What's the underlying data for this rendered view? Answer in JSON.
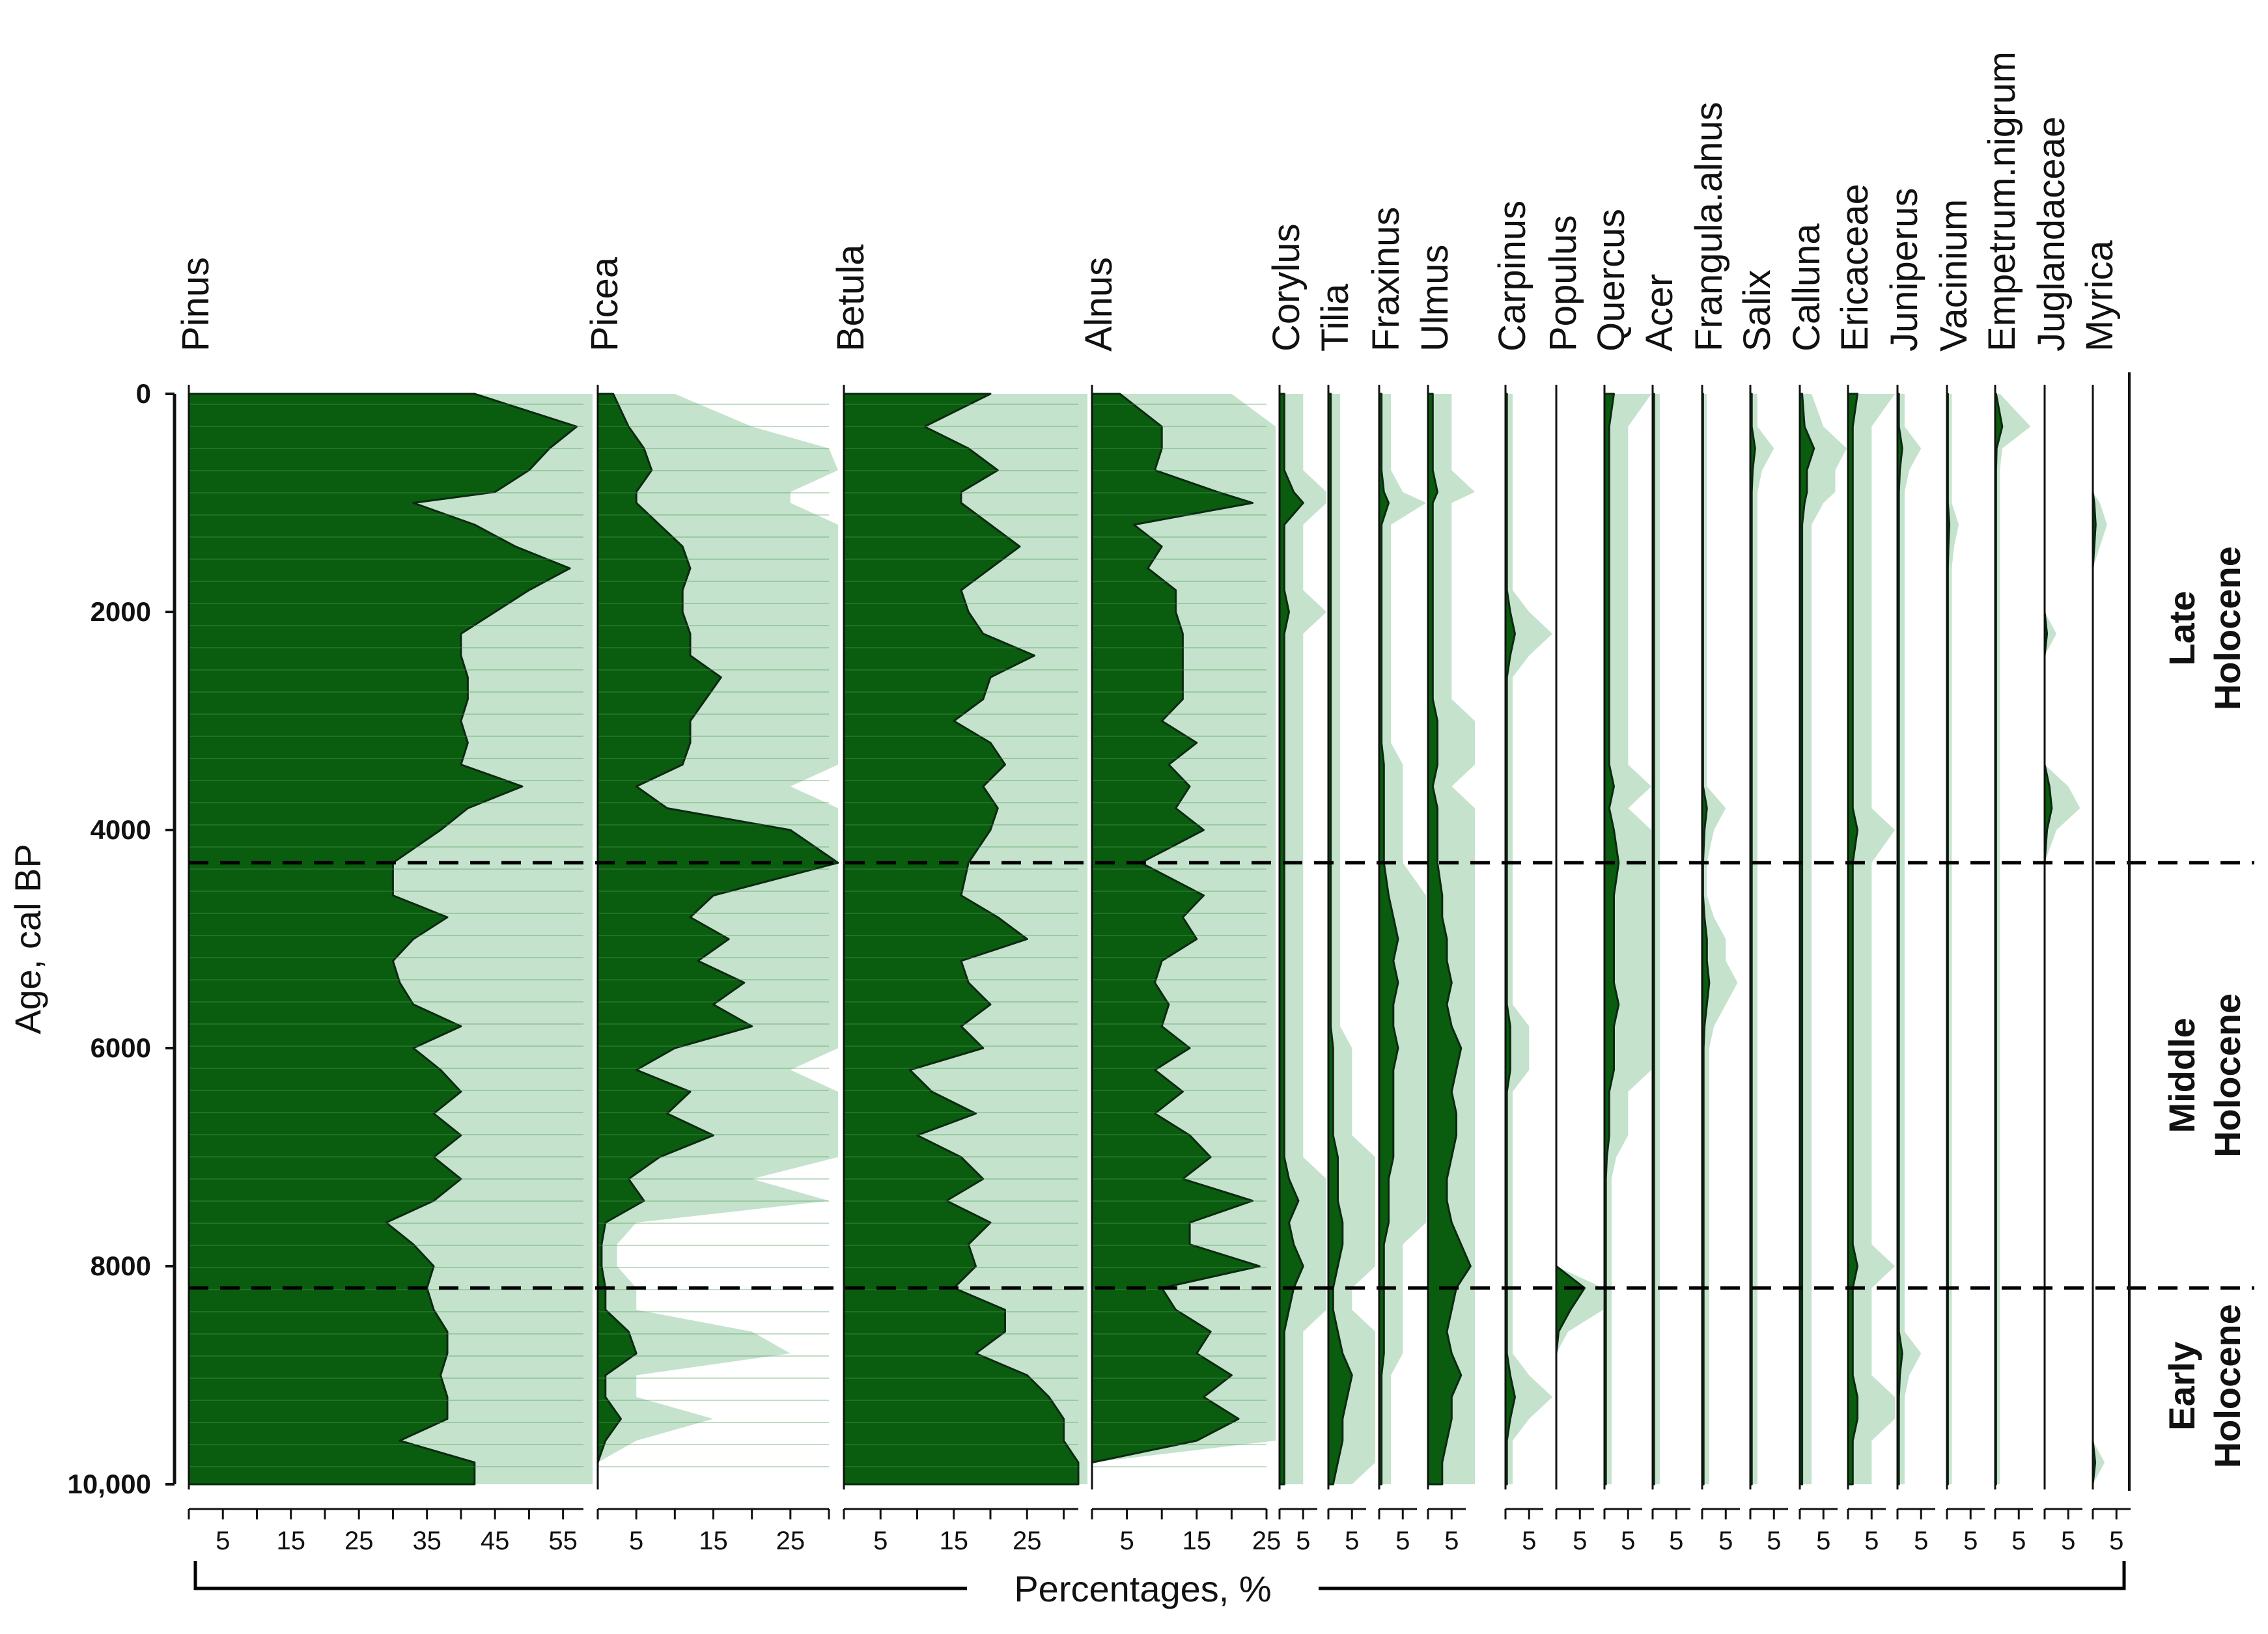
{
  "chart_data": {
    "type": "area",
    "subtype": "stratigraphic pollen diagram",
    "y_axis": {
      "label": "Age, cal BP",
      "ticks": [
        0,
        2000,
        4000,
        6000,
        8000,
        10000
      ],
      "tick_labels": [
        "0",
        "2000",
        "4000",
        "6000",
        "8000",
        "10,000"
      ],
      "range": [
        0,
        10000
      ],
      "direction": "top-to-bottom"
    },
    "x_axis_title": "Percentages, %",
    "ages": [
      0,
      300,
      500,
      700,
      900,
      1000,
      1200,
      1400,
      1600,
      1800,
      2000,
      2200,
      2400,
      2600,
      2800,
      3000,
      3200,
      3400,
      3600,
      3800,
      4000,
      4300,
      4600,
      4800,
      5000,
      5200,
      5400,
      5600,
      5800,
      6000,
      6200,
      6400,
      6600,
      6800,
      7000,
      7200,
      7400,
      7600,
      7800,
      8000,
      8200,
      8400,
      8600,
      8800,
      9000,
      9200,
      9400,
      9600,
      9800,
      10000
    ],
    "zones": [
      {
        "name": "Late Holocene",
        "lines": [
          "Late",
          "Holocene"
        ],
        "from": 0,
        "to": 4300
      },
      {
        "name": "Middle Holocene",
        "lines": [
          "Middle",
          "Holocene"
        ],
        "from": 4300,
        "to": 8200
      },
      {
        "name": "Early Holocene",
        "lines": [
          "Early",
          "Holocene"
        ],
        "from": 8200,
        "to": 10000
      }
    ],
    "zone_boundaries": [
      4300,
      8200
    ],
    "exaggeration_note": "light green shading shows 5x exaggeration",
    "colors": {
      "fill": "#0a5c0f",
      "exaggeration": "#c4e2cc",
      "outline": "#0b2a10",
      "axis": "#111111"
    },
    "taxa": [
      {
        "name": "Pinus",
        "max": 58,
        "ticks": [
          5,
          15,
          25,
          35,
          45,
          55
        ],
        "values": [
          42,
          57,
          53,
          50,
          45,
          33,
          42,
          48,
          56,
          50,
          45,
          40,
          40,
          41,
          41,
          40,
          41,
          40,
          49,
          41,
          37,
          30,
          30,
          38,
          33,
          30,
          31,
          33,
          40,
          33,
          37,
          40,
          36,
          40,
          36,
          40,
          36,
          29,
          33,
          36,
          35,
          36,
          38,
          38,
          37,
          38,
          38,
          31,
          42,
          42
        ]
      },
      {
        "name": "Picea",
        "max": 30,
        "ticks": [
          5,
          15,
          25
        ],
        "values": [
          2,
          4,
          6,
          7,
          5,
          5,
          8,
          11,
          12,
          11,
          11,
          12,
          12,
          16,
          14,
          12,
          12,
          11,
          5,
          9,
          25,
          33,
          15,
          12,
          17,
          13,
          19,
          15,
          20,
          10,
          5,
          12,
          9,
          15,
          8,
          4,
          6,
          1,
          0.5,
          0.5,
          1,
          1,
          4,
          5,
          1,
          1,
          3,
          1,
          0,
          0
        ]
      },
      {
        "name": "Betula",
        "max": 32,
        "ticks": [
          5,
          15,
          25
        ],
        "values": [
          20,
          11,
          17,
          21,
          16,
          16,
          20,
          24,
          20,
          16,
          17,
          19,
          26,
          20,
          19,
          15,
          20,
          22,
          19,
          21,
          20,
          17,
          16,
          21,
          25,
          16,
          17,
          20,
          16,
          19,
          9,
          12,
          18,
          10,
          16,
          19,
          14,
          20,
          17,
          18,
          15,
          22,
          22,
          18,
          25,
          28,
          30,
          30,
          32,
          32
        ]
      },
      {
        "name": "Alnus",
        "max": 25,
        "ticks": [
          5,
          15,
          25
        ],
        "values": [
          4,
          10,
          10,
          9,
          18,
          23,
          6,
          10,
          8,
          12,
          12,
          13,
          13,
          13,
          13,
          10,
          15,
          11,
          14,
          12,
          16,
          7,
          16,
          13,
          15,
          10,
          9,
          11,
          10,
          14,
          9,
          13,
          9,
          14,
          17,
          13,
          23,
          14,
          14,
          24,
          10,
          12,
          17,
          15,
          20,
          16,
          21,
          15,
          0,
          0
        ]
      },
      {
        "name": "Corylus",
        "max": 8,
        "ticks": [
          5
        ],
        "values": [
          1,
          1,
          1,
          1,
          3,
          5,
          1,
          1,
          1,
          1,
          2,
          1,
          1,
          1,
          1,
          1,
          1,
          1,
          1,
          1,
          1,
          1,
          1,
          1,
          1,
          1,
          1,
          1,
          1,
          1,
          1,
          1,
          1,
          1,
          1,
          2,
          4,
          2,
          3,
          5,
          3,
          2,
          1,
          1,
          1,
          1,
          1,
          1,
          1,
          1
        ]
      },
      {
        "name": "Tilia",
        "max": 8,
        "ticks": [
          5
        ],
        "values": [
          0.5,
          0.5,
          0.5,
          0.5,
          0.5,
          0.5,
          0.5,
          0.5,
          0.5,
          0.5,
          0.5,
          0.5,
          0.5,
          0.5,
          0.5,
          0.5,
          0.5,
          0.5,
          0.5,
          0.5,
          0.5,
          0.5,
          0.5,
          0.5,
          0.5,
          0.5,
          0.5,
          0.5,
          0.5,
          1,
          1,
          1,
          1,
          1,
          2,
          2,
          2,
          3,
          3,
          2,
          1,
          1,
          2,
          3,
          5,
          4,
          3,
          3,
          2,
          1
        ]
      },
      {
        "name": "Fraxinus",
        "max": 8,
        "ticks": [
          5
        ],
        "values": [
          0.5,
          0.5,
          0.5,
          0.5,
          1,
          2,
          0.5,
          0.5,
          0.5,
          0.5,
          0.5,
          0.5,
          0.5,
          0.5,
          0.5,
          0.5,
          0.5,
          1,
          1,
          1,
          1,
          1,
          2,
          3,
          4,
          3,
          4,
          3,
          3,
          4,
          3,
          3,
          3,
          3,
          3,
          2,
          2,
          2,
          1,
          1,
          1,
          1,
          1,
          1,
          0.5,
          0.5,
          0.5,
          0.5,
          0.5,
          0.5
        ]
      },
      {
        "name": "Ulmus",
        "max": 8,
        "ticks": [
          5
        ],
        "values": [
          1,
          1,
          1,
          1,
          2,
          1,
          1,
          1,
          1,
          1,
          1,
          1,
          1,
          1,
          1,
          2,
          2,
          2,
          1,
          2,
          2,
          2,
          3,
          3,
          4,
          4,
          5,
          4,
          5,
          7,
          6,
          5,
          6,
          6,
          5,
          4,
          4,
          5,
          7,
          9,
          6,
          5,
          4,
          5,
          7,
          5,
          5,
          4,
          3,
          3
        ]
      },
      {
        "name": "Carpinus",
        "max": 8,
        "ticks": [
          5
        ],
        "values": [
          0.3,
          0.3,
          0.3,
          0.3,
          0.3,
          0.3,
          0.3,
          0.3,
          0.3,
          0.3,
          1,
          2,
          1,
          0.3,
          0.3,
          0.3,
          0.3,
          0.3,
          0.3,
          0.3,
          0.3,
          0.3,
          0.3,
          0.3,
          0.3,
          0.3,
          0.3,
          0.3,
          1,
          1,
          1,
          0.3,
          0.3,
          0.3,
          0.3,
          0.3,
          0.3,
          0.3,
          0.3,
          0.3,
          0.3,
          0.3,
          0.3,
          0.3,
          1,
          2,
          1,
          0.3,
          0.3,
          0.3
        ]
      },
      {
        "name": "Populus",
        "max": 8,
        "ticks": [
          5
        ],
        "values": [
          0,
          0,
          0,
          0,
          0,
          0,
          0,
          0,
          0,
          0,
          0,
          0,
          0,
          0,
          0,
          0,
          0,
          0,
          0,
          0,
          0,
          0,
          0,
          0,
          0,
          0,
          0,
          0,
          0,
          0,
          0,
          0,
          0,
          0,
          0,
          0,
          0,
          0,
          0,
          0,
          6,
          3,
          0.5,
          0,
          0,
          0,
          0,
          0,
          0,
          0
        ]
      },
      {
        "name": "Quercus",
        "max": 8,
        "ticks": [
          5
        ],
        "values": [
          2,
          1,
          1,
          1,
          1,
          1,
          1,
          1,
          1,
          1,
          1,
          1,
          1,
          1,
          1,
          1,
          1,
          1,
          2,
          1,
          2,
          3,
          2,
          2,
          2,
          2,
          2,
          3,
          2,
          2,
          2,
          1,
          1,
          1,
          0.5,
          0.3,
          0.3,
          0.3,
          0.3,
          0.3,
          0.3,
          0.3,
          0.3,
          0.3,
          0.3,
          0.3,
          0.3,
          0.3,
          0.3,
          0.3
        ]
      },
      {
        "name": "Acer",
        "max": 8,
        "ticks": [
          5
        ],
        "values": [
          0.3,
          0.3,
          0.3,
          0.3,
          0.3,
          0.3,
          0.3,
          0.3,
          0.3,
          0.3,
          0.3,
          0.3,
          0.3,
          0.3,
          0.3,
          0.3,
          0.3,
          0.3,
          0.3,
          0.3,
          0.3,
          0.3,
          0.3,
          0.3,
          0.3,
          0.3,
          0.3,
          0.3,
          0.3,
          0.3,
          0.3,
          0.3,
          0.3,
          0.3,
          0.3,
          0.3,
          0.3,
          0.3,
          0.3,
          0.3,
          0.3,
          0.3,
          0.3,
          0.3,
          0.3,
          0.3,
          0.3,
          0.3,
          0.3,
          0.3
        ]
      },
      {
        "name": "Frangula.alnus",
        "max": 8,
        "ticks": [
          5
        ],
        "values": [
          0.2,
          0.2,
          0.2,
          0.2,
          0.2,
          0.2,
          0.2,
          0.2,
          0.2,
          0.2,
          0.2,
          0.2,
          0.2,
          0.2,
          0.2,
          0.2,
          0.2,
          0.2,
          0.2,
          1,
          0.5,
          0.2,
          0.2,
          0.5,
          1,
          1,
          1.5,
          1,
          0.5,
          0.3,
          0.3,
          0.3,
          0.3,
          0.3,
          0.3,
          0.3,
          0.3,
          0.3,
          0.3,
          0.3,
          0.3,
          0.3,
          0.3,
          0.3,
          0.3,
          0.3,
          0.3,
          0.3,
          0.3,
          0.3
        ]
      },
      {
        "name": "Salix",
        "max": 8,
        "ticks": [
          5
        ],
        "values": [
          0.3,
          0.3,
          1,
          0.5,
          0.3,
          0.3,
          0.3,
          0.3,
          0.3,
          0.3,
          0.3,
          0.3,
          0.3,
          0.3,
          0.3,
          0.3,
          0.3,
          0.3,
          0.3,
          0.3,
          0.3,
          0.3,
          0.3,
          0.3,
          0.3,
          0.3,
          0.3,
          0.3,
          0.3,
          0.3,
          0.3,
          0.3,
          0.3,
          0.3,
          0.3,
          0.3,
          0.3,
          0.3,
          0.3,
          0.3,
          0.3,
          0.3,
          0.3,
          0.3,
          0.3,
          0.3,
          0.3,
          0.3,
          0.3,
          0.3
        ]
      },
      {
        "name": "Calluna",
        "max": 8,
        "ticks": [
          5
        ],
        "values": [
          0.5,
          1,
          3,
          1.5,
          1.5,
          1,
          0.5,
          0.5,
          0.5,
          0.5,
          0.5,
          0.5,
          0.5,
          0.5,
          0.5,
          0.5,
          0.5,
          0.5,
          0.5,
          0.5,
          0.5,
          0.5,
          0.5,
          0.5,
          0.5,
          0.5,
          0.5,
          0.5,
          0.5,
          0.5,
          0.5,
          0.5,
          0.5,
          0.5,
          0.5,
          0.5,
          0.5,
          0.5,
          0.5,
          0.5,
          0.5,
          0.5,
          0.5,
          0.5,
          0.5,
          0.5,
          0.5,
          0.5,
          0.5,
          0.5
        ]
      },
      {
        "name": "Ericaceae",
        "max": 8,
        "ticks": [
          5
        ],
        "values": [
          2,
          1,
          1,
          1,
          1,
          1,
          1,
          1,
          1,
          1,
          1,
          1,
          1,
          1,
          1,
          1,
          1,
          1,
          1,
          1,
          2,
          1,
          1,
          1,
          1,
          1,
          1,
          1,
          1,
          1,
          1,
          1,
          1,
          1,
          1,
          1,
          1,
          1,
          1,
          2,
          1,
          1,
          1,
          1,
          1,
          2,
          2,
          1,
          1,
          1
        ]
      },
      {
        "name": "Juniperus",
        "max": 8,
        "ticks": [
          5
        ],
        "values": [
          0.3,
          0.3,
          1,
          0.5,
          0.3,
          0.3,
          0.3,
          0.3,
          0.3,
          0.3,
          0.3,
          0.3,
          0.3,
          0.3,
          0.3,
          0.3,
          0.3,
          0.3,
          0.3,
          0.3,
          0.3,
          0.3,
          0.3,
          0.3,
          0.3,
          0.3,
          0.3,
          0.3,
          0.3,
          0.3,
          0.3,
          0.3,
          0.3,
          0.3,
          0.3,
          0.3,
          0.3,
          0.3,
          0.3,
          0.3,
          0.3,
          0.3,
          0.3,
          1,
          0.5,
          0.3,
          0.3,
          0.3,
          0.3,
          0.3
        ]
      },
      {
        "name": "Vacinium",
        "max": 8,
        "ticks": [
          5
        ],
        "values": [
          0.2,
          0.2,
          0.2,
          0.2,
          0.2,
          0.2,
          0.5,
          0.3,
          0.2,
          0.2,
          0.2,
          0.2,
          0.2,
          0.2,
          0.2,
          0.2,
          0.2,
          0.2,
          0.2,
          0.2,
          0.2,
          0.2,
          0.2,
          0.2,
          0.2,
          0.2,
          0.2,
          0.2,
          0.2,
          0.2,
          0.2,
          0.2,
          0.2,
          0.2,
          0.2,
          0.2,
          0.2,
          0.2,
          0.2,
          0.2,
          0.2,
          0.2,
          0.2,
          0.2,
          0.2,
          0.2,
          0.2,
          0.2,
          0.2,
          0.2
        ]
      },
      {
        "name": "Empetrum.nigrum",
        "max": 8,
        "ticks": [
          5
        ],
        "values": [
          0.2,
          1.5,
          0.3,
          0.2,
          0.2,
          0.2,
          0.2,
          0.2,
          0.2,
          0.2,
          0.2,
          0.2,
          0.2,
          0.2,
          0.2,
          0.2,
          0.2,
          0.2,
          0.2,
          0.2,
          0.2,
          0.2,
          0.2,
          0.2,
          0.2,
          0.2,
          0.2,
          0.2,
          0.2,
          0.2,
          0.2,
          0.2,
          0.2,
          0.2,
          0.2,
          0.2,
          0.2,
          0.2,
          0.2,
          0.2,
          0.2,
          0.2,
          0.2,
          0.2,
          0.2,
          0.2,
          0.2,
          0.2,
          0.2,
          0.2
        ]
      },
      {
        "name": "Juglandaceae",
        "max": 8,
        "ticks": [
          5
        ],
        "values": [
          0,
          0,
          0,
          0,
          0,
          0,
          0,
          0,
          0,
          0,
          0,
          0.5,
          0,
          0,
          0,
          0,
          0,
          0,
          1,
          1.5,
          0.5,
          0,
          0,
          0,
          0,
          0,
          0,
          0,
          0,
          0,
          0,
          0,
          0,
          0,
          0,
          0,
          0,
          0,
          0,
          0,
          0,
          0,
          0,
          0,
          0,
          0,
          0,
          0,
          0,
          0
        ]
      },
      {
        "name": "Myrica",
        "max": 8,
        "ticks": [
          5
        ],
        "values": [
          0,
          0,
          0,
          0,
          0,
          0.3,
          0.6,
          0.3,
          0,
          0,
          0,
          0,
          0,
          0,
          0,
          0,
          0,
          0,
          0,
          0,
          0,
          0,
          0,
          0,
          0,
          0,
          0,
          0,
          0,
          0,
          0,
          0,
          0,
          0,
          0,
          0,
          0,
          0,
          0,
          0,
          0,
          0,
          0,
          0,
          0,
          0,
          0,
          0,
          0.5,
          0
        ]
      }
    ]
  }
}
